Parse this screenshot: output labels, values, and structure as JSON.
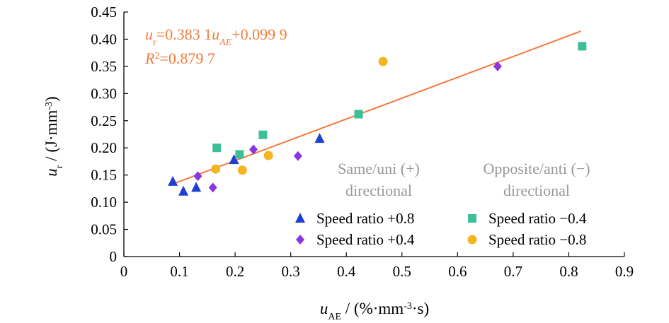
{
  "colors": {
    "fit_line": "#f27a3c",
    "equation": "#f27a3c",
    "region_label": "#9e9e9e",
    "axis": "#000000"
  },
  "chart_data": {
    "type": "scatter",
    "xlabel": {
      "main": "u",
      "sub": "AE",
      "rest": " / (%·mm",
      "sup": "-3",
      "rest2": "·s)"
    },
    "ylabel": {
      "main": "u",
      "sub": "r",
      "rest": " / (J·mm",
      "sup": "-3",
      "rest2": ")"
    },
    "xlim": [
      0,
      0.9
    ],
    "ylim": [
      0,
      0.45
    ],
    "x_ticks": [
      "0",
      "0.1",
      "0.2",
      "0.3",
      "0.4",
      "0.5",
      "0.6",
      "0.7",
      "0.8",
      "0.9"
    ],
    "y_ticks": [
      "0",
      "0.05",
      "0.10",
      "0.15",
      "0.20",
      "0.25",
      "0.30",
      "0.35",
      "0.40",
      "0.45"
    ],
    "grid": false,
    "legend_position": "bottom-right",
    "series": [
      {
        "name": "Speed ratio +0.8",
        "marker": "triangle",
        "color": "#1f3fcf",
        "points": [
          [
            0.088,
            0.138
          ],
          [
            0.107,
            0.12
          ],
          [
            0.13,
            0.127
          ],
          [
            0.198,
            0.178
          ],
          [
            0.352,
            0.217
          ]
        ]
      },
      {
        "name": "Speed ratio +0.4",
        "marker": "diamond",
        "color": "#8b35e0",
        "points": [
          [
            0.133,
            0.148
          ],
          [
            0.16,
            0.127
          ],
          [
            0.233,
            0.197
          ],
          [
            0.313,
            0.185
          ],
          [
            0.672,
            0.35
          ]
        ]
      },
      {
        "name": "Speed ratio −0.4",
        "marker": "square",
        "color": "#3dbf98",
        "points": [
          [
            0.167,
            0.2
          ],
          [
            0.208,
            0.188
          ],
          [
            0.25,
            0.224
          ],
          [
            0.422,
            0.262
          ],
          [
            0.824,
            0.387
          ]
        ]
      },
      {
        "name": "Speed ratio −0.8",
        "marker": "circle",
        "color": "#f5b520",
        "points": [
          [
            0.165,
            0.161
          ],
          [
            0.213,
            0.159
          ],
          [
            0.26,
            0.186
          ],
          [
            0.466,
            0.359
          ]
        ]
      }
    ],
    "fit_line": {
      "slope": 0.3831,
      "intercept": 0.0999,
      "x_range": [
        0.085,
        0.822
      ]
    },
    "equation": {
      "lhs_main": "u",
      "lhs_sub": "r",
      "rhs_pre": "=0.383 1",
      "var_main": "u",
      "var_sub": "AE",
      "rhs_post": "+0.099 9",
      "r2_main": "R",
      "r2_sup": "2",
      "r2_value": "=0.879 7"
    },
    "region_labels": [
      {
        "line1": "Same/uni (+)",
        "line2": "directional"
      },
      {
        "line1": "Opposite/anti (−)",
        "line2": "directional"
      }
    ]
  }
}
